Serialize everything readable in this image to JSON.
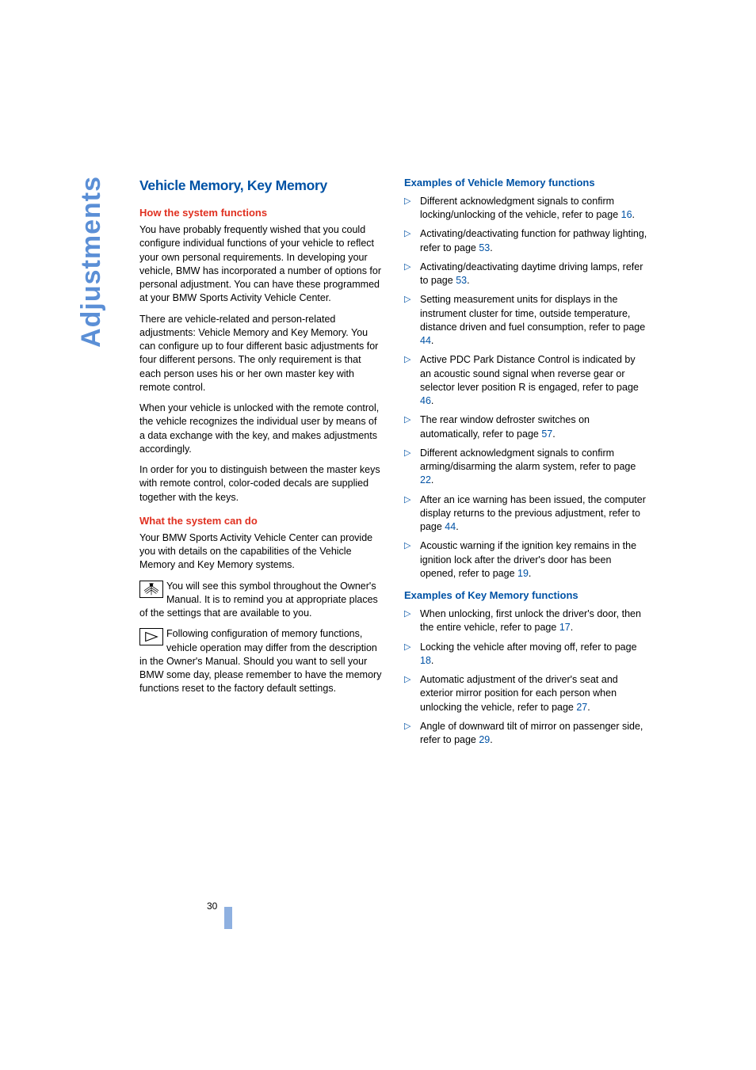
{
  "sideLabel": "Adjustments",
  "pageNumber": "30",
  "colors": {
    "sideLabel": "#5b8fd6",
    "h1": "#0052a5",
    "h2": "#e03020",
    "h3": "#0052a5",
    "link": "#0052a5",
    "pagemark": "#8eb0e0"
  },
  "left": {
    "title": "Vehicle Memory, Key Memory",
    "h2a": "How the system functions",
    "p1": "You have probably frequently wished that you could configure individual functions of your vehicle to reflect your own personal requirements. In developing your vehicle, BMW has incorporated a number of options for personal adjustment. You can have these programmed at your BMW Sports Activity Vehicle Center.",
    "p2": "There are vehicle-related and person-related adjustments: Vehicle Memory and Key Memory. You can configure up to four different basic adjustments for four different persons. The only requirement is that each person uses his or her own master key with remote control.",
    "p3": "When your vehicle is unlocked with the remote control, the vehicle recognizes the individual user by means of a data exchange with the key, and makes adjustments accordingly.",
    "p4": "In order for you to distinguish between the master keys with remote control, color-coded decals are supplied together with the keys.",
    "h2b": "What the system can do",
    "p5": "Your BMW Sports Activity Vehicle Center can provide you with details on the capabilities of the Vehicle Memory and Key Memory systems.",
    "p6": "You will see this symbol throughout the Owner's Manual. It is to remind you at appropriate places of the settings that are available to you.",
    "p7": "Following configuration of memory functions, vehicle operation may differ from the description in the Owner's Manual. Should you want to sell your BMW some day, please remember to have the memory functions reset to the factory default settings."
  },
  "right": {
    "h3a": "Examples of Vehicle Memory functions",
    "vm": [
      {
        "t": "Different acknowledgment signals to confirm locking/unlocking of the vehicle, refer to page ",
        "l": "16"
      },
      {
        "t": "Activating/deactivating function for pathway lighting, refer to page ",
        "l": "53"
      },
      {
        "t": "Activating/deactivating daytime driving lamps, refer to page ",
        "l": "53"
      },
      {
        "t": "Setting measurement units for displays in the instrument cluster for time, outside temperature, distance driven and fuel consumption, refer to page ",
        "l": "44"
      },
      {
        "t": "Active PDC Park Distance Control is indicated by an acoustic sound signal when reverse gear or selector lever position R is engaged, refer to page ",
        "l": "46"
      },
      {
        "t": "The rear window defroster switches on automatically, refer to page ",
        "l": "57"
      },
      {
        "t": "Different acknowledgment signals to confirm arming/disarming the alarm system, refer to page ",
        "l": "22"
      },
      {
        "t": "After an ice warning has been issued, the computer display returns to the previous adjustment, refer to page ",
        "l": "44"
      },
      {
        "t": "Acoustic warning if the ignition key remains in the ignition lock after the driver's door has been opened, refer to page ",
        "l": "19"
      }
    ],
    "h3b": "Examples of Key Memory functions",
    "km": [
      {
        "t": "When unlocking, first unlock the driver's door, then the entire vehicle, refer to page ",
        "l": "17"
      },
      {
        "t": "Locking the vehicle after moving off, refer to page ",
        "l": "18"
      },
      {
        "t": "Automatic adjustment of the driver's seat and exterior mirror position for each person when unlocking the vehicle, refer to page ",
        "l": "27"
      },
      {
        "t": "Angle of downward tilt of mirror on passenger side, refer to page ",
        "l": "29"
      }
    ]
  }
}
